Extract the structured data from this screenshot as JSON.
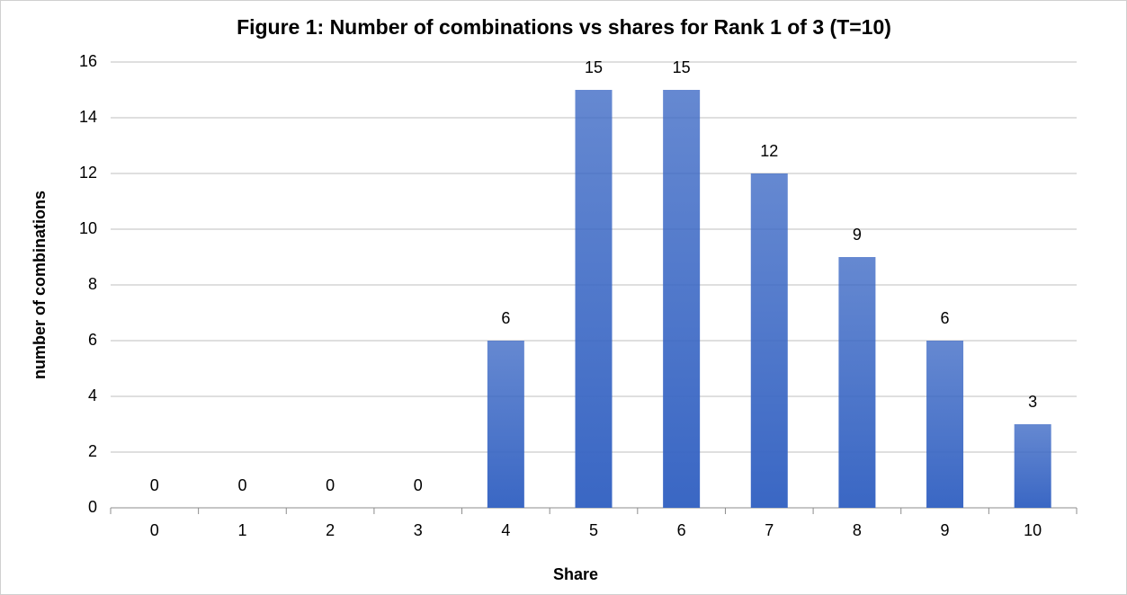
{
  "chart_data": {
    "type": "bar",
    "title": "Figure 1: Number of combinations vs shares for Rank 1 of 3 (T=10)",
    "x_label": "Share",
    "y_label": "number of combinations",
    "categories": [
      "0",
      "1",
      "2",
      "3",
      "4",
      "5",
      "6",
      "7",
      "8",
      "9",
      "10"
    ],
    "values": [
      0,
      0,
      0,
      0,
      6,
      15,
      15,
      12,
      9,
      6,
      3
    ],
    "color": "#3a67c4",
    "ylim": [
      0,
      16
    ],
    "yticks": [
      0,
      2,
      4,
      6,
      8,
      10,
      12,
      14,
      16
    ],
    "grid": true
  }
}
